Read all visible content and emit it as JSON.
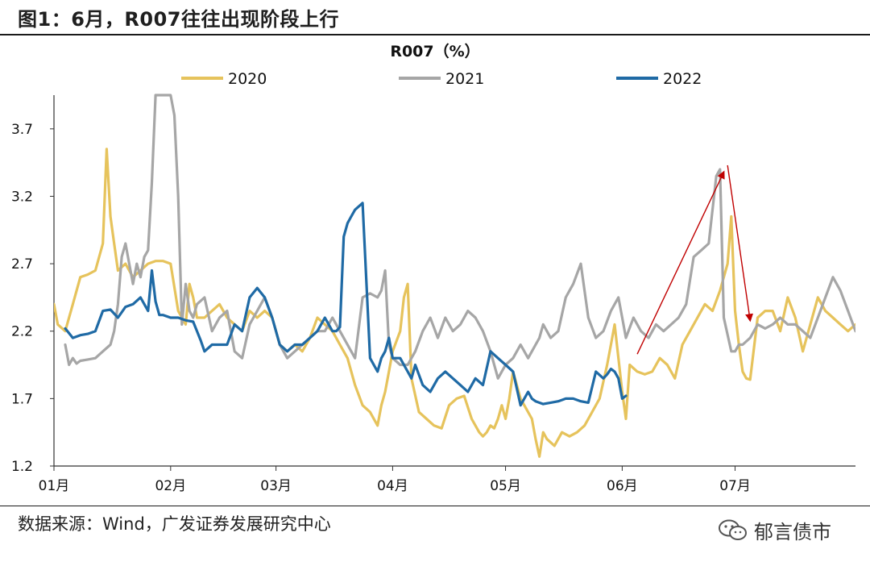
{
  "figure": {
    "title": "图1：6月，R007往往出现阶段上行",
    "source": "数据来源：Wind，广发证券发展研究中心",
    "watermark": "郁言债市"
  },
  "chart_data": {
    "type": "line",
    "title": "R007（%）",
    "xlabel": "",
    "ylabel": "",
    "ylim": [
      1.2,
      3.95
    ],
    "yticks": [
      "1.2",
      "1.7",
      "2.2",
      "2.7",
      "3.2",
      "3.7"
    ],
    "ytick_values": [
      1.2,
      1.7,
      2.2,
      2.7,
      3.2,
      3.7
    ],
    "xtick_labels": [
      "01月",
      "02月",
      "03月",
      "04月",
      "05月",
      "06月",
      "07月"
    ],
    "xtick_days": [
      0,
      31,
      59,
      90,
      120,
      151,
      181
    ],
    "x_range_days": [
      0,
      213
    ],
    "grid": false,
    "legend": "top",
    "series": [
      {
        "name": "2020",
        "color": "#e6c35c",
        "x": [
          0,
          1,
          3,
          5,
          7,
          9,
          11,
          13,
          14,
          15,
          16,
          17,
          19,
          21,
          23,
          25,
          27,
          29,
          31,
          33,
          35,
          36,
          37,
          38,
          40,
          42,
          44,
          46,
          48,
          50,
          52,
          54,
          56,
          58,
          60,
          62,
          64,
          66,
          68,
          70,
          72,
          74,
          76,
          78,
          80,
          82,
          84,
          86,
          87,
          88,
          89,
          90,
          92,
          93,
          94,
          95,
          97,
          99,
          101,
          103,
          105,
          107,
          109,
          111,
          113,
          114,
          115,
          116,
          117,
          118,
          119,
          120,
          121,
          122,
          124,
          126,
          127,
          128,
          129,
          130,
          131,
          133,
          135,
          137,
          139,
          141,
          143,
          145,
          147,
          148,
          149,
          150,
          151,
          152,
          153,
          155,
          157,
          159,
          161,
          163,
          165,
          167,
          169,
          171,
          173,
          175,
          177,
          179,
          180,
          181,
          182,
          183,
          184,
          185,
          187,
          189,
          191,
          193,
          195,
          197,
          199,
          201,
          203,
          205,
          207,
          209,
          211,
          213
        ],
        "values": [
          2.4,
          2.25,
          2.2,
          2.4,
          2.6,
          2.62,
          2.65,
          2.85,
          3.55,
          3.05,
          2.85,
          2.65,
          2.7,
          2.6,
          2.65,
          2.7,
          2.72,
          2.72,
          2.7,
          2.35,
          2.25,
          2.55,
          2.45,
          2.3,
          2.3,
          2.35,
          2.4,
          2.3,
          2.25,
          2.2,
          2.35,
          2.3,
          2.35,
          2.3,
          2.1,
          2.05,
          2.1,
          2.05,
          2.15,
          2.3,
          2.25,
          2.2,
          2.1,
          2.0,
          1.8,
          1.65,
          1.6,
          1.5,
          1.65,
          1.75,
          1.9,
          2.05,
          2.2,
          2.45,
          2.55,
          1.85,
          1.6,
          1.55,
          1.5,
          1.48,
          1.65,
          1.7,
          1.72,
          1.55,
          1.45,
          1.42,
          1.45,
          1.5,
          1.48,
          1.55,
          1.65,
          1.55,
          1.7,
          1.9,
          1.7,
          1.6,
          1.55,
          1.4,
          1.27,
          1.45,
          1.4,
          1.35,
          1.45,
          1.42,
          1.45,
          1.5,
          1.6,
          1.7,
          1.95,
          2.1,
          2.25,
          2.0,
          1.75,
          1.55,
          1.95,
          1.9,
          1.88,
          1.9,
          2.0,
          1.95,
          1.85,
          2.1,
          2.2,
          2.3,
          2.4,
          2.35,
          2.5,
          2.7,
          3.05,
          2.35,
          2.1,
          1.9,
          1.85,
          1.84,
          2.3,
          2.35,
          2.35,
          2.2,
          2.45,
          2.3,
          2.05,
          2.25,
          2.45,
          2.35,
          2.3,
          2.25,
          2.2,
          2.25
        ]
      },
      {
        "name": "2021",
        "color": "#a6a6a6",
        "x": [
          3,
          4,
          5,
          6,
          7,
          9,
          11,
          13,
          15,
          16,
          17,
          18,
          19,
          20,
          21,
          22,
          23,
          24,
          25,
          26,
          27,
          28,
          29,
          30,
          31,
          32,
          33,
          34,
          35,
          36,
          37,
          38,
          40,
          42,
          44,
          46,
          48,
          50,
          52,
          54,
          56,
          58,
          60,
          62,
          64,
          66,
          68,
          70,
          72,
          74,
          76,
          78,
          80,
          82,
          84,
          86,
          87,
          88,
          89,
          90,
          92,
          94,
          96,
          98,
          100,
          102,
          104,
          106,
          108,
          110,
          112,
          114,
          116,
          118,
          120,
          122,
          124,
          126,
          128,
          129,
          130,
          132,
          134,
          136,
          138,
          140,
          142,
          144,
          146,
          148,
          150,
          151,
          152,
          154,
          156,
          158,
          160,
          162,
          164,
          166,
          168,
          170,
          172,
          174,
          176,
          177,
          178,
          180,
          181,
          182,
          183,
          185,
          187,
          189,
          191,
          193,
          195,
          197,
          199,
          201,
          203,
          205,
          207,
          209,
          211,
          213
        ],
        "values": [
          2.1,
          1.95,
          2.0,
          1.96,
          1.98,
          1.99,
          2.0,
          2.05,
          2.1,
          2.2,
          2.4,
          2.75,
          2.85,
          2.7,
          2.55,
          2.7,
          2.6,
          2.75,
          2.8,
          3.3,
          3.95,
          3.95,
          3.95,
          3.95,
          3.95,
          3.8,
          3.2,
          2.25,
          2.55,
          2.35,
          2.3,
          2.4,
          2.45,
          2.2,
          2.3,
          2.35,
          2.05,
          2.0,
          2.25,
          2.35,
          2.45,
          2.3,
          2.1,
          2.0,
          2.05,
          2.1,
          2.15,
          2.2,
          2.2,
          2.3,
          2.2,
          2.1,
          2.0,
          2.45,
          2.48,
          2.45,
          2.5,
          2.65,
          2.1,
          2.0,
          1.95,
          1.95,
          2.05,
          2.2,
          2.3,
          2.15,
          2.3,
          2.2,
          2.25,
          2.35,
          2.3,
          2.2,
          2.05,
          1.85,
          1.95,
          2.0,
          2.1,
          2.0,
          2.1,
          2.15,
          2.25,
          2.15,
          2.2,
          2.45,
          2.55,
          2.7,
          2.3,
          2.15,
          2.2,
          2.35,
          2.45,
          2.3,
          2.15,
          2.3,
          2.2,
          2.15,
          2.25,
          2.2,
          2.25,
          2.3,
          2.4,
          2.75,
          2.8,
          2.85,
          3.35,
          3.4,
          2.3,
          2.05,
          2.05,
          2.1,
          2.1,
          2.15,
          2.25,
          2.22,
          2.25,
          2.3,
          2.25,
          2.25,
          2.2,
          2.15,
          2.3,
          2.45,
          2.6,
          2.5,
          2.35,
          2.2
        ]
      },
      {
        "name": "2022",
        "color": "#1f6aa5",
        "x": [
          3,
          5,
          7,
          9,
          11,
          13,
          15,
          17,
          19,
          21,
          23,
          25,
          26,
          27,
          28,
          29,
          31,
          33,
          35,
          37,
          38,
          39,
          40,
          42,
          44,
          46,
          48,
          50,
          52,
          54,
          56,
          58,
          60,
          62,
          64,
          66,
          68,
          70,
          72,
          74,
          75,
          76,
          77,
          78,
          79,
          80,
          82,
          84,
          86,
          87,
          88,
          89,
          90,
          91,
          92,
          93,
          94,
          95,
          96,
          98,
          100,
          102,
          104,
          106,
          108,
          110,
          112,
          114,
          116,
          118,
          120,
          122,
          124,
          126,
          127,
          128,
          130,
          132,
          134,
          136,
          138,
          140,
          142,
          144,
          146,
          147,
          148,
          149,
          150,
          151,
          152
        ],
        "values": [
          2.22,
          2.15,
          2.17,
          2.18,
          2.2,
          2.35,
          2.36,
          2.3,
          2.38,
          2.4,
          2.45,
          2.35,
          2.65,
          2.42,
          2.32,
          2.32,
          2.3,
          2.3,
          2.28,
          2.27,
          2.2,
          2.13,
          2.05,
          2.1,
          2.1,
          2.1,
          2.25,
          2.2,
          2.45,
          2.52,
          2.45,
          2.3,
          2.1,
          2.05,
          2.1,
          2.1,
          2.15,
          2.2,
          2.3,
          2.2,
          2.2,
          2.23,
          2.9,
          3.0,
          3.05,
          3.1,
          3.15,
          2.0,
          1.9,
          2.0,
          2.05,
          2.15,
          2.0,
          2.0,
          2.0,
          1.95,
          1.9,
          1.85,
          1.95,
          1.8,
          1.75,
          1.85,
          1.9,
          1.85,
          1.8,
          1.75,
          1.85,
          1.8,
          2.05,
          2.0,
          1.95,
          1.9,
          1.65,
          1.75,
          1.7,
          1.68,
          1.66,
          1.67,
          1.68,
          1.7,
          1.7,
          1.68,
          1.67,
          1.9,
          1.85,
          1.88,
          1.92,
          1.9,
          1.85,
          1.7,
          1.72
        ]
      }
    ],
    "annotations": [
      {
        "type": "arrow",
        "color": "#c00000",
        "from": [
          155,
          2.03
        ],
        "to": [
          178,
          3.38
        ]
      },
      {
        "type": "arrow",
        "color": "#c00000",
        "from": [
          179,
          3.43
        ],
        "to": [
          185,
          2.28
        ]
      }
    ]
  }
}
